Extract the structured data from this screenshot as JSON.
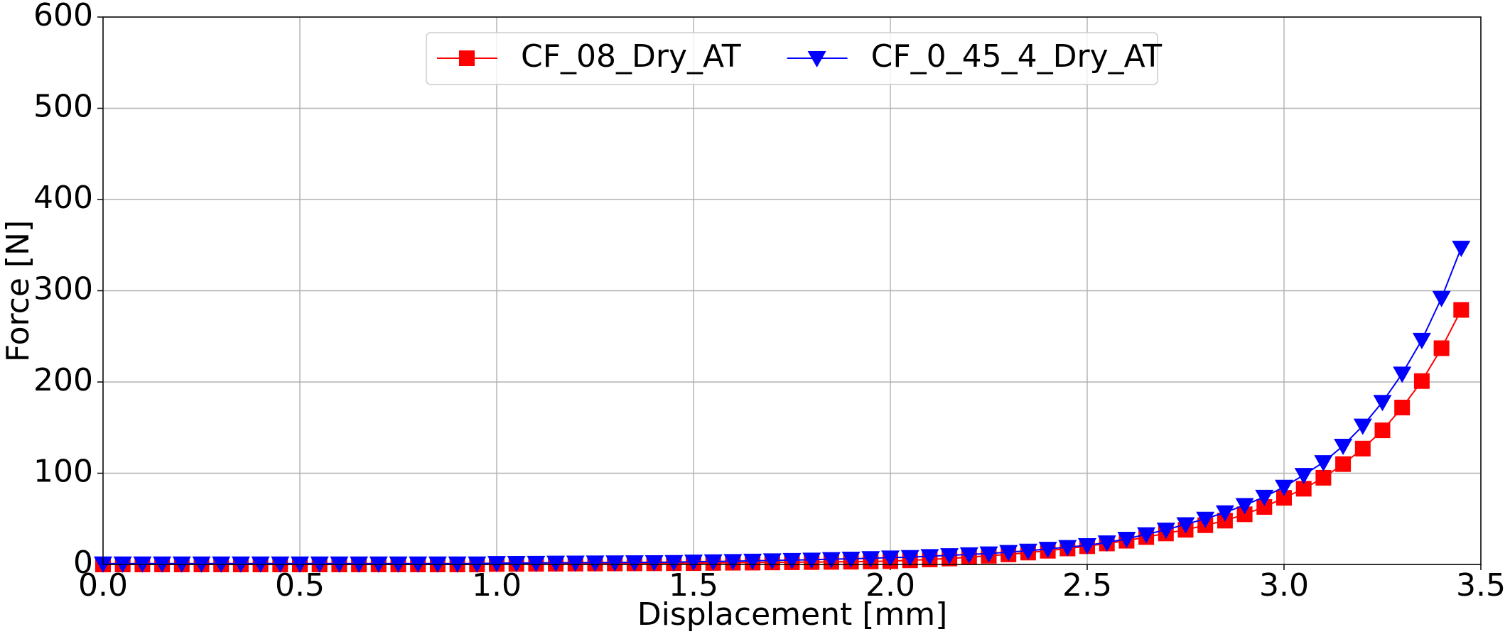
{
  "chart_data": {
    "type": "line",
    "x_label": "Displacement [mm]",
    "y_label": "Force [N]",
    "x": [
      0,
      0.05,
      0.1,
      0.15,
      0.2,
      0.25,
      0.3,
      0.35,
      0.4,
      0.45,
      0.5,
      0.55,
      0.6,
      0.65,
      0.7,
      0.75,
      0.8,
      0.85,
      0.9,
      0.95,
      1.0,
      1.05,
      1.1,
      1.15,
      1.2,
      1.25,
      1.3,
      1.35,
      1.4,
      1.45,
      1.5,
      1.55,
      1.6,
      1.65,
      1.7,
      1.75,
      1.8,
      1.85,
      1.9,
      1.95,
      2.0,
      2.05,
      2.1,
      2.15,
      2.2,
      2.25,
      2.3,
      2.35,
      2.4,
      2.45,
      2.5,
      2.55,
      2.6,
      2.65,
      2.7,
      2.75,
      2.8,
      2.85,
      2.9,
      2.95,
      3.0,
      3.05,
      3.1,
      3.15,
      3.2,
      3.25,
      3.3,
      3.35,
      3.4,
      3.45
    ],
    "series": [
      {
        "name": "CF_08_Dry_AT",
        "color": "#ff0000",
        "marker": "square",
        "values": [
          0,
          0,
          0,
          0,
          0,
          0,
          0,
          0,
          0,
          0,
          0,
          0,
          0,
          0,
          0,
          0,
          0,
          0,
          0,
          0,
          0.5,
          0.6,
          0.7,
          0.8,
          0.9,
          1,
          1.1,
          1.2,
          1.3,
          1.4,
          1.5,
          1.7,
          1.9,
          2,
          2.2,
          2.4,
          2.6,
          2.8,
          3,
          3.3,
          3.6,
          4.5,
          5.5,
          6.5,
          8,
          9.5,
          11,
          13,
          15,
          17.5,
          20,
          23,
          26,
          30,
          34,
          38,
          43,
          48,
          55,
          63,
          73,
          83,
          95,
          110,
          127,
          147,
          172,
          201,
          237,
          279
        ]
      },
      {
        "name": "CF_0_45_4_Dry_AT",
        "color": "#0000ff",
        "marker": "triangle-down",
        "values": [
          1,
          1,
          1,
          1,
          1,
          1,
          1,
          1,
          1,
          1,
          1,
          1,
          1,
          1,
          1,
          1,
          1,
          1,
          1,
          1,
          1.5,
          1.6,
          1.7,
          1.8,
          1.9,
          2,
          2.1,
          2.2,
          2.3,
          2.5,
          3,
          3.3,
          3.6,
          4,
          4.4,
          4.8,
          5.2,
          5.7,
          6.2,
          6.8,
          7.5,
          8,
          9,
          10,
          11,
          12,
          13.5,
          15,
          17,
          19,
          21,
          24,
          28,
          33,
          38,
          44,
          50,
          57,
          65,
          74,
          85,
          98,
          112,
          130,
          152,
          178,
          209,
          246,
          292,
          347
        ]
      }
    ],
    "xlim": [
      0,
      3.5
    ],
    "xticks": [
      {
        "value": 0,
        "label": "0.0"
      },
      0.5,
      {
        "value": 1,
        "label": "1.0"
      },
      1.5,
      {
        "value": 2,
        "label": "2.0"
      },
      2.5,
      {
        "value": 3,
        "label": "3.0"
      },
      3.5
    ],
    "ylim": [
      0,
      600
    ],
    "yticks": [
      0,
      100,
      200,
      300,
      400,
      500,
      600
    ],
    "grid": true,
    "legend": "upper center"
  }
}
